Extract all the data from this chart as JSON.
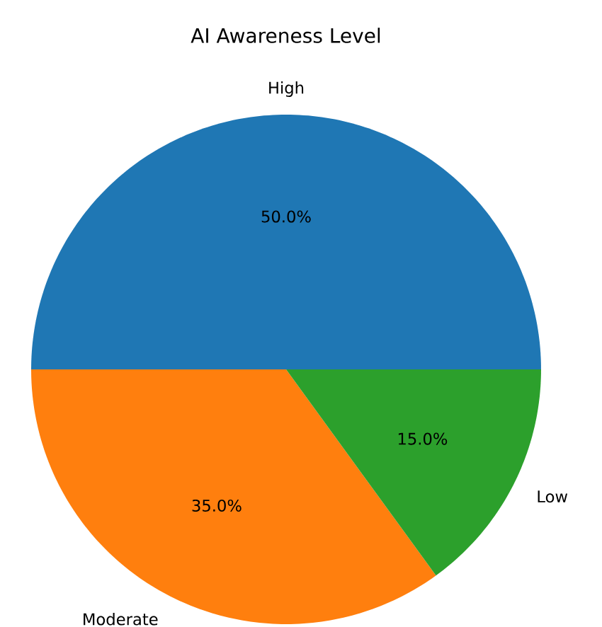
{
  "chart_data": {
    "type": "pie",
    "title": "AI Awareness Level",
    "categories": [
      "High",
      "Moderate",
      "Low"
    ],
    "values": [
      50,
      35,
      15
    ],
    "value_labels": [
      "50.0%",
      "35.0%",
      "15.0%"
    ],
    "colors": [
      "#1f77b4",
      "#ff7f0e",
      "#2ca02c"
    ]
  }
}
